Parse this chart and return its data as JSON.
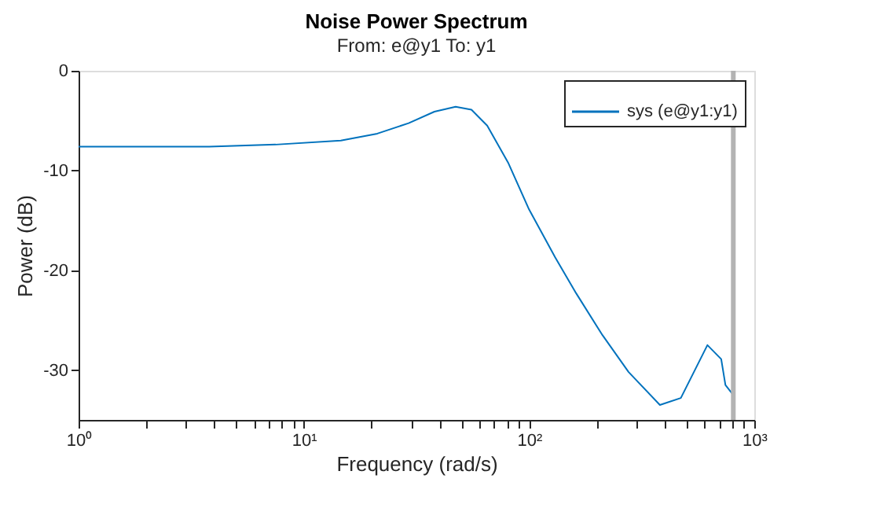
{
  "chart_data": {
    "type": "line",
    "title": "Noise Power Spectrum",
    "subtitle": "From: e@y1  To: y1",
    "xlabel": "Frequency (rad/s)",
    "ylabel": "Power (dB)",
    "log": "x",
    "x": [
      1,
      3.8,
      7.5,
      14.6,
      21.2,
      29.2,
      38,
      47.2,
      55.5,
      65.2,
      80.7,
      100,
      130.6,
      161.8,
      211.8,
      276.7,
      381,
      472,
      619.3,
      713,
      744.6,
      807
    ],
    "series": [
      {
        "name": "sys (e@y1:y1)",
        "color": "#0072bd",
        "values": [
          -7.6,
          -7.6,
          -7.4,
          -7.0,
          -6.3,
          -5.25,
          -4.1,
          -3.6,
          -3.9,
          -5.5,
          -9.2,
          -13.9,
          -18.7,
          -22.3,
          -26.5,
          -30.2,
          -33.5,
          -32.8,
          -27.5,
          -28.9,
          -31.5,
          -32.5
        ]
      }
    ],
    "xlim": [
      1,
      1000
    ],
    "ylim": [
      -35,
      0
    ],
    "xticks": [
      {
        "value": 1,
        "label": "10⁰"
      },
      {
        "value": 2,
        "label": null
      },
      {
        "value": 3,
        "label": null
      },
      {
        "value": 4,
        "label": null
      },
      {
        "value": 5,
        "label": null
      },
      {
        "value": 6,
        "label": null
      },
      {
        "value": 7,
        "label": null
      },
      {
        "value": 8,
        "label": null
      },
      {
        "value": 9,
        "label": null
      },
      {
        "value": 10,
        "label": "10¹"
      },
      {
        "value": 20,
        "label": null
      },
      {
        "value": 30,
        "label": null
      },
      {
        "value": 40,
        "label": null
      },
      {
        "value": 50,
        "label": null
      },
      {
        "value": 60,
        "label": null
      },
      {
        "value": 70,
        "label": null
      },
      {
        "value": 80,
        "label": null
      },
      {
        "value": 90,
        "label": null
      },
      {
        "value": 100,
        "label": "10²"
      },
      {
        "value": 200,
        "label": null
      },
      {
        "value": 300,
        "label": null
      },
      {
        "value": 400,
        "label": null
      },
      {
        "value": 500,
        "label": null
      },
      {
        "value": 600,
        "label": null
      },
      {
        "value": 700,
        "label": null
      },
      {
        "value": 800,
        "label": null
      },
      {
        "value": 900,
        "label": null
      },
      {
        "value": 1000,
        "label": "10³"
      }
    ],
    "yticks": [
      0,
      -10,
      -20,
      -30
    ],
    "ref_lines": [
      {
        "axis": "x",
        "value": 807,
        "color": "#b3b3b3"
      }
    ],
    "grid": false,
    "legend": "top right",
    "marker": "none",
    "line_style": "solid"
  }
}
